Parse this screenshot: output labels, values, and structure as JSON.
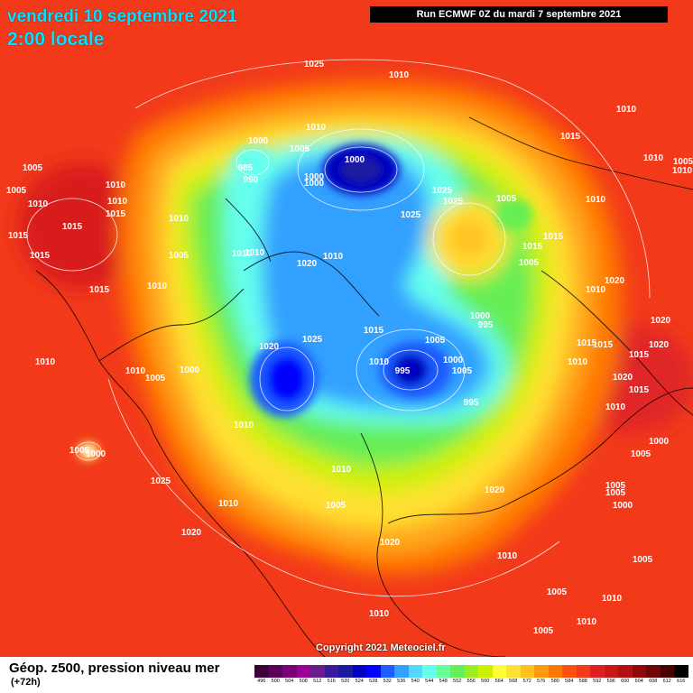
{
  "header": {
    "date": "vendredi 10 septembre 2021",
    "time": "2:00 locale",
    "run": "Run ECMWF 0Z du mardi 7 septembre 2021"
  },
  "copyright": "Copyright 2021 Meteociel.fr",
  "legend": {
    "title": "Géop. z500, pression niveau mer",
    "subtitle": "(+72h)",
    "scale": [
      {
        "label": "496",
        "color": "#3b003b"
      },
      {
        "label": "500",
        "color": "#5a005a"
      },
      {
        "label": "504",
        "color": "#7a007a"
      },
      {
        "label": "508",
        "color": "#990099"
      },
      {
        "label": "512",
        "color": "#6a1a8a"
      },
      {
        "label": "516",
        "color": "#3a1a9a"
      },
      {
        "label": "520",
        "color": "#1a1aa0"
      },
      {
        "label": "524",
        "color": "#0000c0"
      },
      {
        "label": "528",
        "color": "#0000ff"
      },
      {
        "label": "532",
        "color": "#1e5cff"
      },
      {
        "label": "536",
        "color": "#33a0ff"
      },
      {
        "label": "540",
        "color": "#55d8ff"
      },
      {
        "label": "544",
        "color": "#66ffee"
      },
      {
        "label": "548",
        "color": "#66ff99"
      },
      {
        "label": "552",
        "color": "#66ee55"
      },
      {
        "label": "556",
        "color": "#99ee22"
      },
      {
        "label": "560",
        "color": "#ccf000"
      },
      {
        "label": "564",
        "color": "#ffff33"
      },
      {
        "label": "568",
        "color": "#ffe033"
      },
      {
        "label": "572",
        "color": "#ffc020"
      },
      {
        "label": "576",
        "color": "#ff9a10"
      },
      {
        "label": "580",
        "color": "#ff7800"
      },
      {
        "label": "584",
        "color": "#ff5010"
      },
      {
        "label": "588",
        "color": "#f23a1a"
      },
      {
        "label": "592",
        "color": "#e02020"
      },
      {
        "label": "596",
        "color": "#c81818"
      },
      {
        "label": "600",
        "color": "#b01010"
      },
      {
        "label": "604",
        "color": "#900808"
      },
      {
        "label": "608",
        "color": "#700404"
      },
      {
        "label": "612",
        "color": "#4a0000"
      },
      {
        "label": "616",
        "color": "#000000"
      }
    ]
  },
  "isobars": [
    {
      "v": "1025"
    },
    {
      "v": "1010"
    },
    {
      "v": "1010"
    },
    {
      "v": "1005"
    },
    {
      "v": "1015"
    },
    {
      "v": "1010"
    },
    {
      "v": "1005"
    },
    {
      "v": "1010"
    },
    {
      "v": "1015"
    },
    {
      "v": "1010"
    },
    {
      "v": "1010"
    },
    {
      "v": "1015"
    },
    {
      "v": "1015"
    },
    {
      "v": "1015"
    },
    {
      "v": "1010"
    },
    {
      "v": "1000"
    },
    {
      "v": "985"
    },
    {
      "v": "990"
    },
    {
      "v": "1005"
    },
    {
      "v": "1000"
    },
    {
      "v": "1000"
    },
    {
      "v": "1000"
    },
    {
      "v": "1025"
    },
    {
      "v": "1025"
    },
    {
      "v": "1025"
    },
    {
      "v": "1005"
    },
    {
      "v": "1010"
    },
    {
      "v": "1015"
    },
    {
      "v": "1015"
    },
    {
      "v": "1010"
    },
    {
      "v": "1005"
    },
    {
      "v": "1010"
    },
    {
      "v": "1015"
    },
    {
      "v": "1020"
    },
    {
      "v": "1010"
    },
    {
      "v": "1010"
    },
    {
      "v": "1000"
    },
    {
      "v": "1020"
    },
    {
      "v": "1005"
    },
    {
      "v": "1020"
    },
    {
      "v": "1025"
    },
    {
      "v": "1015"
    },
    {
      "v": "1010"
    },
    {
      "v": "1000"
    },
    {
      "v": "995"
    },
    {
      "v": "1005"
    },
    {
      "v": "995"
    },
    {
      "v": "1000"
    },
    {
      "v": "995"
    },
    {
      "v": "1010"
    },
    {
      "v": "1015"
    },
    {
      "v": "1015"
    },
    {
      "v": "1010"
    },
    {
      "v": "1000"
    },
    {
      "v": "1020"
    },
    {
      "v": "1015"
    },
    {
      "v": "1020"
    },
    {
      "v": "1020"
    },
    {
      "v": "1015"
    },
    {
      "v": "1010"
    },
    {
      "v": "1005"
    },
    {
      "v": "1000"
    },
    {
      "v": "1010"
    },
    {
      "v": "1010"
    },
    {
      "v": "1020"
    },
    {
      "v": "1010"
    },
    {
      "v": "1020"
    },
    {
      "v": "1010"
    },
    {
      "v": "1010"
    },
    {
      "v": "1005"
    },
    {
      "v": "1005"
    },
    {
      "v": "1010"
    },
    {
      "v": "1005"
    },
    {
      "v": "1025"
    },
    {
      "v": "1020"
    },
    {
      "v": "1010"
    },
    {
      "v": "1005"
    },
    {
      "v": "1010"
    },
    {
      "v": "1010"
    },
    {
      "v": "1005"
    },
    {
      "v": "1010"
    },
    {
      "v": "1005"
    },
    {
      "v": "1005"
    },
    {
      "v": "1005"
    },
    {
      "v": "1005"
    },
    {
      "v": "1000"
    },
    {
      "v": "1010"
    },
    {
      "v": "1005"
    }
  ]
}
